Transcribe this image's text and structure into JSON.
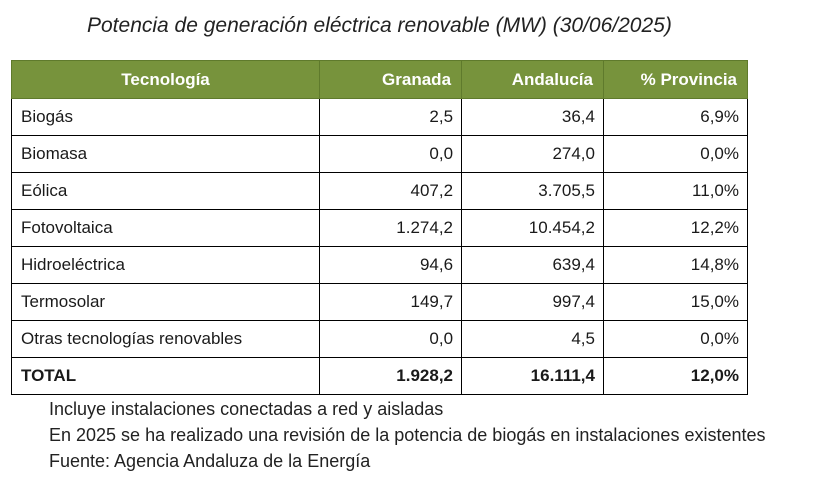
{
  "title": "Potencia de generación eléctrica renovable (MW) (30/06/2025)",
  "table": {
    "headers": [
      "Tecnología",
      "Granada",
      "Andalucía",
      "% Provincia"
    ],
    "rows": [
      {
        "tecnologia": "Biogás",
        "granada": "2,5",
        "andalucia": "36,4",
        "provincia": "6,9%"
      },
      {
        "tecnologia": "Biomasa",
        "granada": "0,0",
        "andalucia": "274,0",
        "provincia": "0,0%"
      },
      {
        "tecnologia": "Eólica",
        "granada": "407,2",
        "andalucia": "3.705,5",
        "provincia": "11,0%"
      },
      {
        "tecnologia": "Fotovoltaica",
        "granada": "1.274,2",
        "andalucia": "10.454,2",
        "provincia": "12,2%"
      },
      {
        "tecnologia": "Hidroeléctrica",
        "granada": "94,6",
        "andalucia": "639,4",
        "provincia": "14,8%"
      },
      {
        "tecnologia": "Termosolar",
        "granada": "149,7",
        "andalucia": "997,4",
        "provincia": "15,0%"
      },
      {
        "tecnologia": "Otras tecnologías renovables",
        "granada": "0,0",
        "andalucia": "4,5",
        "provincia": "0,0%"
      }
    ],
    "total": {
      "tecnologia": "TOTAL",
      "granada": "1.928,2",
      "andalucia": "16.111,4",
      "provincia": "12,0%"
    }
  },
  "notes": [
    "Incluye instalaciones conectadas a red y aisladas",
    "En 2025 se ha realizado una revisión de la potencia  de biogás en instalaciones existentes",
    "Fuente: Agencia Andaluza de la Energía"
  ],
  "colors": {
    "header_bg": "#77933c",
    "header_text": "#ffffff"
  }
}
